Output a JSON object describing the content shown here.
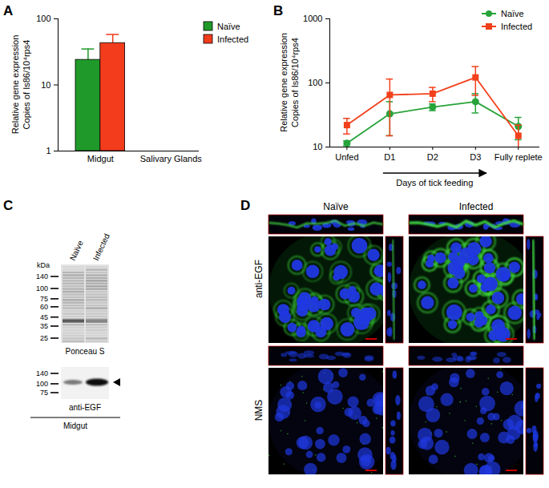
{
  "chart_data": [
    {
      "type": "bar",
      "title": "A",
      "ylabel": "Relative gene expression\nCopies of Is86/10⁴rps4",
      "categories": [
        "Midgut",
        "Salivary Glands"
      ],
      "series": [
        {
          "name": "Naïve",
          "color": "#1f9a2a",
          "values": [
            24,
            null
          ],
          "errors": [
            11,
            null
          ]
        },
        {
          "name": "Infected",
          "color": "#f23c1c",
          "values": [
            43,
            null
          ],
          "errors": [
            15,
            null
          ]
        }
      ],
      "ylim": [
        1,
        100
      ],
      "yticks": [
        1,
        10,
        100
      ],
      "log": "y",
      "legend": "top-right"
    },
    {
      "type": "line",
      "title": "B",
      "ylabel": "Relative gene expression\nCopies of Is86/10⁴rps4",
      "xlabel": "Days of tick feeding",
      "categories": [
        "Unfed",
        "D1",
        "D2",
        "D3",
        "Fully replete"
      ],
      "series": [
        {
          "name": "Naïve",
          "color": "#27a33a",
          "marker": "circle",
          "values": [
            11.5,
            33,
            42,
            51,
            21
          ],
          "errors": [
            1,
            18,
            5,
            17,
            8
          ]
        },
        {
          "name": "Infected",
          "color": "#f2401c",
          "marker": "square",
          "values": [
            22,
            65,
            68,
            122,
            15
          ],
          "errors": [
            6,
            50,
            17,
            58,
            7
          ]
        }
      ],
      "ylim": [
        10,
        1000
      ],
      "yticks": [
        10,
        100,
        1000
      ],
      "log": "y",
      "legend": "top-right"
    }
  ],
  "blot": {
    "title": "C",
    "lanes": [
      "Naïve",
      "Infected"
    ],
    "unit": "kDa",
    "stain": {
      "markers": [
        140,
        100,
        75,
        60,
        45,
        35,
        25
      ],
      "label": "Ponceau S"
    },
    "western": {
      "markers": [
        140,
        100,
        75
      ],
      "label": "anti-EGF"
    },
    "tissue": "Midgut"
  },
  "micrographs": {
    "title": "D",
    "columns": [
      "Naïve",
      "Infected"
    ],
    "rows": [
      "anti-EGF",
      "NMS"
    ]
  }
}
